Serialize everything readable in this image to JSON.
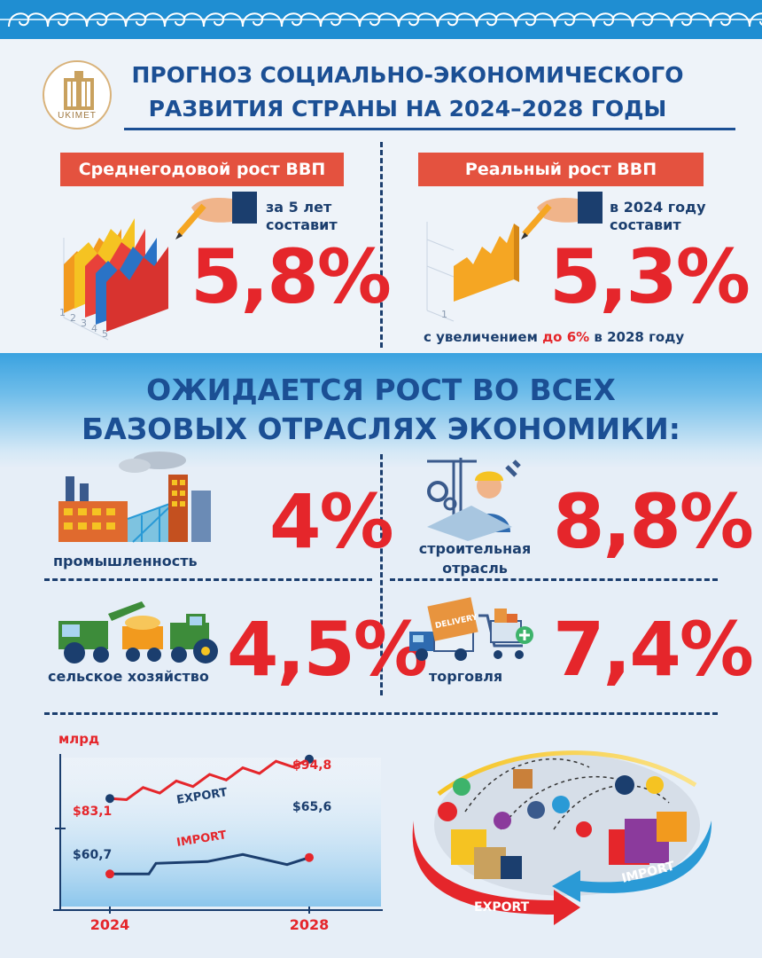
{
  "header": {
    "logo_text": "UKIMET",
    "title_line1": "ПРОГНОЗ СОЦИАЛЬНО-ЭКОНОМИЧЕСКОГО",
    "title_line2": "РАЗВИТИЯ СТРАНЫ НА 2024–2028 ГОДЫ"
  },
  "gdp": {
    "avg": {
      "label": "Среднегодовой  рост ВВП",
      "note_line1": "за 5 лет",
      "note_line2": "составит",
      "value": "5,8%",
      "axis_ticks": [
        "1",
        "2",
        "3",
        "4",
        "5"
      ]
    },
    "real": {
      "label": "Реальный рост ВВП",
      "note_line1": "в 2024 году",
      "note_line2": "составит",
      "value": "5,3%",
      "axis_tick": "1",
      "footnote_pre": "с увеличением ",
      "footnote_highlight": "до 6%",
      "footnote_post": " в 2028 году"
    }
  },
  "sectors": {
    "title_line1": "ОЖИДАЕТСЯ РОСТ ВО ВСЕХ",
    "title_line2": "БАЗОВЫХ ОТРАСЛЯХ ЭКОНОМИКИ:",
    "industry": {
      "label": "промышленность",
      "value": "4%"
    },
    "construction": {
      "label_line1": "строительная",
      "label_line2": "отрасль",
      "value": "8,8%"
    },
    "agriculture": {
      "label": "сельское хозяйство",
      "value": "4,5%"
    },
    "trade": {
      "label": "торговля",
      "value": "7,4%",
      "truck_text": "DELIVERY"
    }
  },
  "trade_chart": {
    "unit": "млрд",
    "year_start": "2024",
    "year_end": "2028",
    "export_label": "EXPORT",
    "import_label": "IMPORT",
    "export_start": "$83,1",
    "export_end": "$94,8",
    "import_start": "$60,7",
    "import_end": "$65,6"
  },
  "trade_illustration": {
    "export_arrow_label": "EXPORT",
    "import_arrow_label": "IMPORT"
  },
  "colors": {
    "accent_red": "#e5262b",
    "label_red": "#e4523f",
    "title_blue": "#1b4f94",
    "band_blue": "#3aa2e0"
  },
  "chart_data": {
    "type": "line",
    "x": [
      "2024",
      "2028"
    ],
    "ylabel": "млрд",
    "series": [
      {
        "name": "EXPORT",
        "values": [
          83.1,
          94.8
        ]
      },
      {
        "name": "IMPORT",
        "values": [
          60.7,
          65.6
        ]
      }
    ]
  }
}
